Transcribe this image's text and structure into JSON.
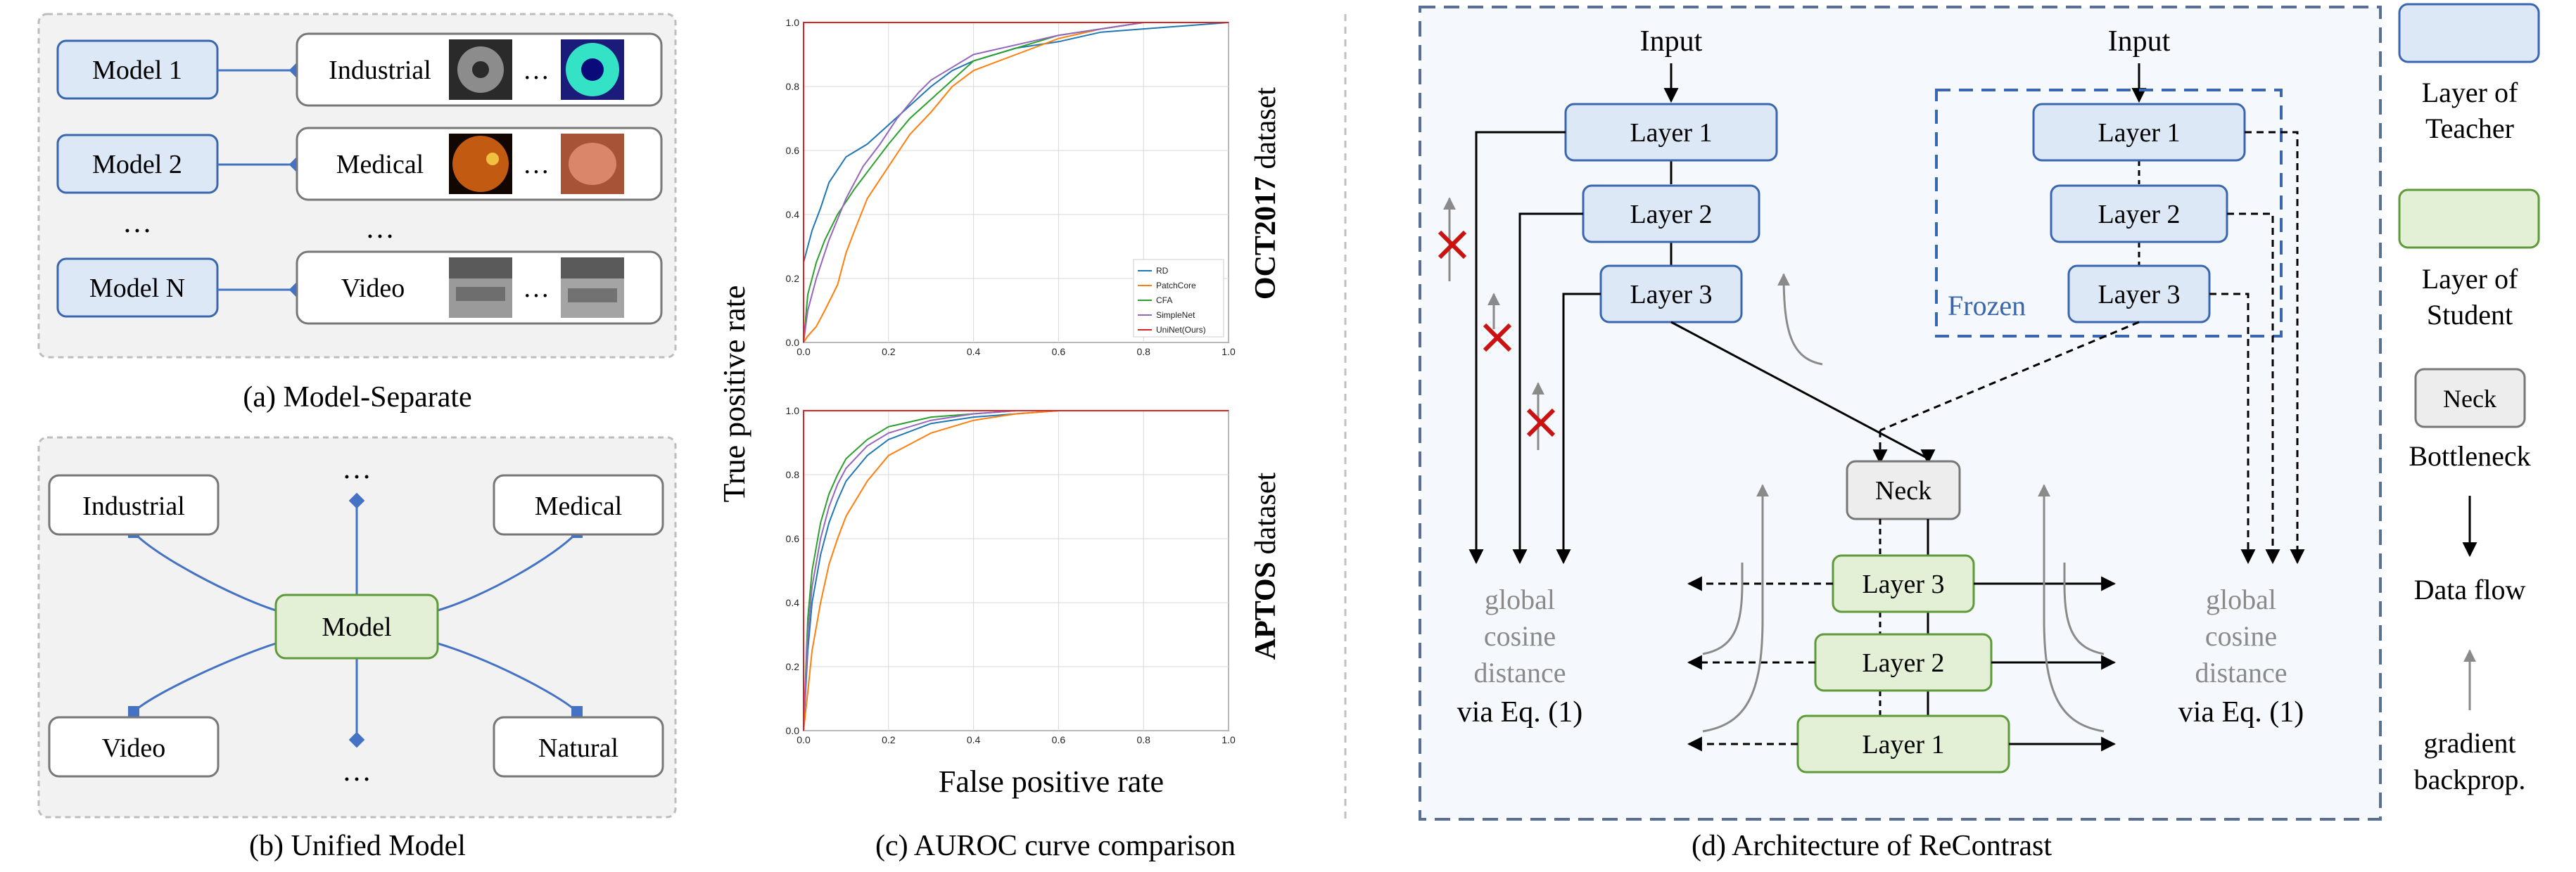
{
  "panel_a": {
    "caption": "(a) Model-Separate",
    "rows": [
      {
        "model": "Model 1",
        "domain": "Industrial"
      },
      {
        "model": "Model 2",
        "domain": "Medical"
      },
      {
        "model": "Model N",
        "domain": "Video"
      }
    ],
    "ellipsis": "…",
    "vertical_ellipsis": "…"
  },
  "panel_b": {
    "caption": "(b) Unified Model",
    "center": "Model",
    "domains": [
      "Industrial",
      "Medical",
      "Video",
      "Natural"
    ],
    "ellipsis": "…"
  },
  "panel_c": {
    "caption": "(c) AUROC curve comparison",
    "ylabel": "True positive rate",
    "xlabel": "False positive rate",
    "top_title_bold": "OCT2017",
    "top_title_rest": " dataset",
    "bottom_title_bold": "APTOS",
    "bottom_title_rest": " dataset"
  },
  "chart_data": [
    {
      "type": "line",
      "title": "OCT2017 dataset",
      "xlabel": "False positive rate",
      "ylabel": "True positive rate",
      "xlim": [
        0,
        1
      ],
      "ylim": [
        0,
        1
      ],
      "xticks": [
        "0.0",
        "0.2",
        "0.4",
        "0.6",
        "0.8",
        "1.0"
      ],
      "yticks": [
        "0.0",
        "0.2",
        "0.4",
        "0.6",
        "0.8",
        "1.0"
      ],
      "grid": true,
      "legend": "bottom-right",
      "series": [
        {
          "name": "RD",
          "color": "#1f77b4",
          "x": [
            0,
            0,
            0.02,
            0.04,
            0.06,
            0.1,
            0.15,
            0.2,
            0.25,
            0.3,
            0.35,
            0.4,
            0.5,
            0.6,
            0.7,
            0.8,
            0.9,
            1.0
          ],
          "y": [
            0,
            0.25,
            0.35,
            0.42,
            0.5,
            0.58,
            0.62,
            0.68,
            0.74,
            0.8,
            0.85,
            0.88,
            0.92,
            0.94,
            0.97,
            0.98,
            0.99,
            1.0
          ]
        },
        {
          "name": "PatchCore",
          "color": "#ff7f0e",
          "x": [
            0,
            0.01,
            0.03,
            0.05,
            0.08,
            0.1,
            0.12,
            0.15,
            0.2,
            0.25,
            0.3,
            0.35,
            0.4,
            0.5,
            0.6,
            0.7,
            0.8,
            1.0
          ],
          "y": [
            0,
            0.02,
            0.05,
            0.1,
            0.18,
            0.28,
            0.35,
            0.45,
            0.55,
            0.65,
            0.72,
            0.8,
            0.85,
            0.9,
            0.95,
            0.98,
            1.0,
            1.0
          ]
        },
        {
          "name": "CFA",
          "color": "#2ca02c",
          "x": [
            0,
            0.01,
            0.03,
            0.05,
            0.08,
            0.12,
            0.16,
            0.2,
            0.25,
            0.3,
            0.35,
            0.4,
            0.5,
            0.6,
            0.7,
            0.8,
            1.0
          ],
          "y": [
            0,
            0.15,
            0.25,
            0.32,
            0.4,
            0.48,
            0.55,
            0.62,
            0.7,
            0.76,
            0.82,
            0.88,
            0.92,
            0.96,
            0.98,
            1.0,
            1.0
          ]
        },
        {
          "name": "SimpleNet",
          "color": "#9467bd",
          "x": [
            0,
            0.01,
            0.03,
            0.06,
            0.1,
            0.14,
            0.18,
            0.22,
            0.27,
            0.3,
            0.35,
            0.4,
            0.5,
            0.6,
            0.7,
            0.8,
            1.0
          ],
          "y": [
            0,
            0.1,
            0.2,
            0.32,
            0.45,
            0.55,
            0.62,
            0.7,
            0.78,
            0.82,
            0.86,
            0.9,
            0.93,
            0.96,
            0.98,
            1.0,
            1.0
          ]
        },
        {
          "name": "UniNet(Ours)",
          "color": "#d62728",
          "x": [
            0,
            0,
            0.01,
            1.0
          ],
          "y": [
            0,
            1.0,
            1.0,
            1.0
          ]
        }
      ]
    },
    {
      "type": "line",
      "title": "APTOS dataset",
      "xlabel": "False positive rate",
      "ylabel": "True positive rate",
      "xlim": [
        0,
        1
      ],
      "ylim": [
        0,
        1
      ],
      "xticks": [
        "0.0",
        "0.2",
        "0.4",
        "0.6",
        "0.8",
        "1.0"
      ],
      "yticks": [
        "0.0",
        "0.2",
        "0.4",
        "0.6",
        "0.8",
        "1.0"
      ],
      "grid": true,
      "series": [
        {
          "name": "RD",
          "color": "#1f77b4",
          "x": [
            0,
            0.01,
            0.02,
            0.04,
            0.06,
            0.08,
            0.1,
            0.15,
            0.2,
            0.3,
            0.4,
            0.5,
            0.6,
            0.8,
            1.0
          ],
          "y": [
            0,
            0.25,
            0.4,
            0.55,
            0.65,
            0.72,
            0.78,
            0.86,
            0.91,
            0.96,
            0.98,
            0.99,
            1.0,
            1.0,
            1.0
          ]
        },
        {
          "name": "PatchCore",
          "color": "#ff7f0e",
          "x": [
            0,
            0.01,
            0.02,
            0.04,
            0.06,
            0.08,
            0.1,
            0.15,
            0.2,
            0.3,
            0.4,
            0.5,
            0.6,
            0.8,
            1.0
          ],
          "y": [
            0,
            0.12,
            0.25,
            0.4,
            0.52,
            0.6,
            0.67,
            0.78,
            0.86,
            0.93,
            0.97,
            0.99,
            1.0,
            1.0,
            1.0
          ]
        },
        {
          "name": "CFA",
          "color": "#2ca02c",
          "x": [
            0,
            0.01,
            0.02,
            0.04,
            0.06,
            0.08,
            0.1,
            0.15,
            0.2,
            0.3,
            0.4,
            0.5,
            0.6,
            0.8,
            1.0
          ],
          "y": [
            0,
            0.35,
            0.5,
            0.65,
            0.74,
            0.8,
            0.85,
            0.91,
            0.95,
            0.98,
            0.99,
            1.0,
            1.0,
            1.0,
            1.0
          ]
        },
        {
          "name": "SimpleNet",
          "color": "#9467bd",
          "x": [
            0,
            0.01,
            0.02,
            0.04,
            0.06,
            0.08,
            0.1,
            0.15,
            0.2,
            0.3,
            0.4,
            0.5,
            0.6,
            0.8,
            1.0
          ],
          "y": [
            0,
            0.3,
            0.45,
            0.6,
            0.7,
            0.77,
            0.82,
            0.89,
            0.93,
            0.97,
            0.99,
            1.0,
            1.0,
            1.0,
            1.0
          ]
        },
        {
          "name": "UniNet(Ours)",
          "color": "#d62728",
          "x": [
            0,
            0,
            0.01,
            1.0
          ],
          "y": [
            0,
            1.0,
            1.0,
            1.0
          ]
        }
      ]
    }
  ],
  "panel_d": {
    "caption": "(d) Architecture of ReContrast",
    "input_left": "Input",
    "input_right": "Input",
    "teacher_left": [
      "Layer 1",
      "Layer 2",
      "Layer 3"
    ],
    "teacher_right": [
      "Layer 1",
      "Layer 2",
      "Layer 3"
    ],
    "frozen": "Frozen",
    "neck": "Neck",
    "student": [
      "Layer 3",
      "Layer 2",
      "Layer 1"
    ],
    "global_left": [
      "global",
      "cosine",
      "distance"
    ],
    "via_left": "via Eq. (1)",
    "global_right": [
      "global",
      "cosine",
      "distance"
    ],
    "via_right": "via Eq. (1)"
  },
  "legend": {
    "teacher": [
      "Layer of",
      "Teacher"
    ],
    "student": [
      "Layer of",
      "Student"
    ],
    "neck_box": "Neck",
    "neck_label": "Bottleneck",
    "data_flow": "Data flow",
    "gradient": [
      "gradient",
      "backprop."
    ]
  },
  "colors": {
    "teacher_fill": "#dce8f6",
    "teacher_stroke": "#3a66b0",
    "student_fill": "#e3f0d5",
    "student_stroke": "#5e9a3a",
    "neck_fill": "#ededed",
    "gray_box_stroke": "#777777",
    "panel_bg": "#f2f2f2",
    "panel_d_bg": "#f5f8fc",
    "panel_d_border": "#5a6f96",
    "connector": "#4472c4",
    "cross": "#cc1111",
    "grad_arrow": "#8a8a8a"
  }
}
